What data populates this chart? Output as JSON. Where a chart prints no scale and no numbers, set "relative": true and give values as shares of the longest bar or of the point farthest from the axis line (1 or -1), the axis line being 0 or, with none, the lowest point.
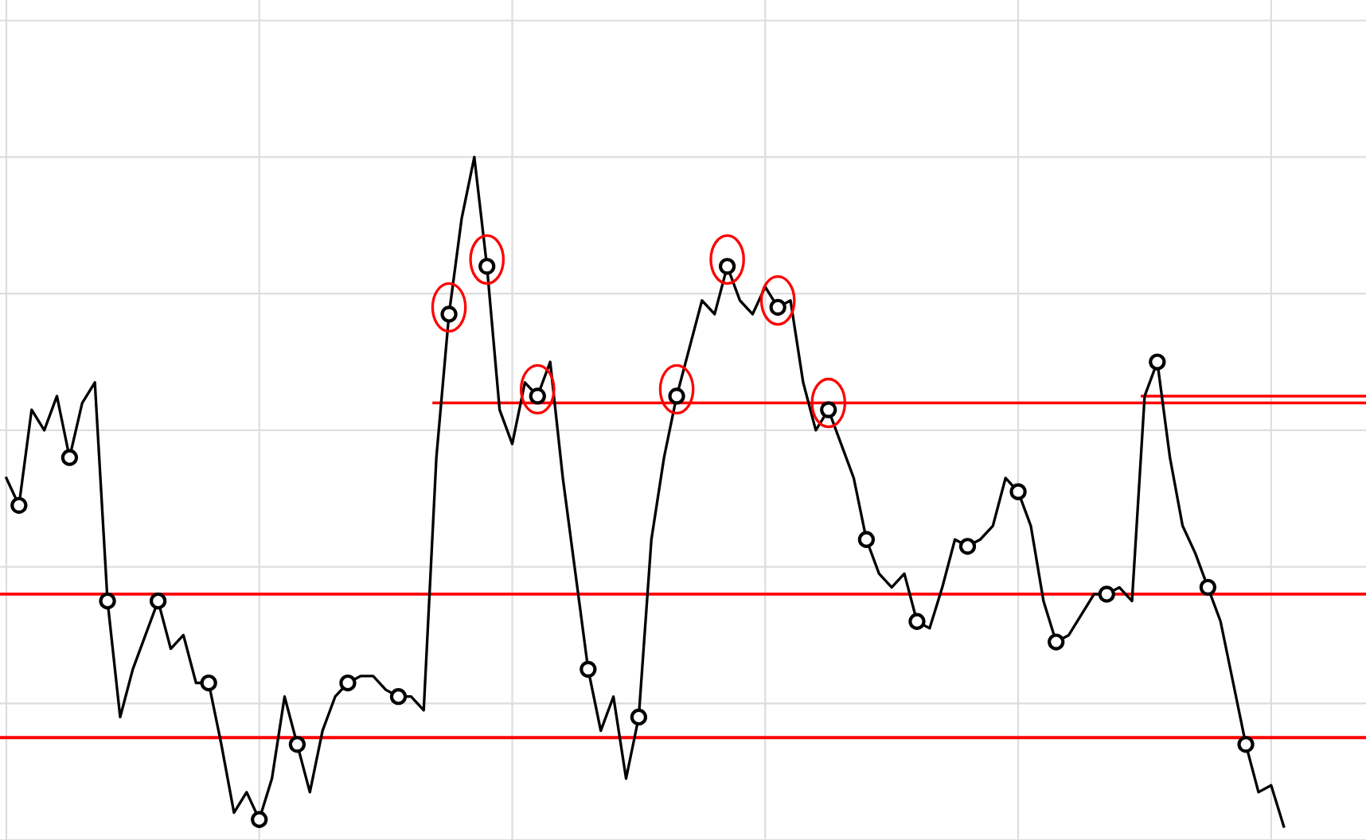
{
  "chart_data": {
    "type": "line",
    "relative": true,
    "grid": true,
    "legend": false,
    "categories": [
      null,
      null,
      null,
      null,
      null,
      null,
      null,
      null,
      null,
      null,
      null,
      null,
      null,
      null,
      null,
      null,
      null,
      null,
      null,
      null,
      null,
      null,
      null,
      null,
      null,
      null,
      null,
      null,
      null,
      null,
      null,
      null,
      null,
      null,
      null,
      null,
      null,
      null,
      null,
      null,
      null,
      null,
      null,
      null,
      null,
      null,
      null,
      null,
      null,
      null,
      null,
      null,
      null,
      null,
      null,
      null,
      null,
      null,
      null,
      null,
      null,
      null,
      null,
      null,
      null,
      null,
      null,
      null,
      null,
      null,
      null,
      null,
      null,
      null,
      null,
      null,
      null,
      null,
      null,
      null,
      null,
      null,
      null,
      null,
      null,
      null,
      null,
      null,
      null,
      null,
      null,
      null,
      null,
      null,
      null,
      null,
      null,
      null,
      null,
      null,
      null,
      null
    ],
    "series": [
      {
        "color": "#000000",
        "values": [
          0.53,
          0.49,
          0.63,
          0.6,
          0.65,
          0.56,
          0.64,
          0.67,
          0.35,
          0.18,
          0.25,
          0.3,
          0.35,
          0.28,
          0.3,
          0.23,
          0.23,
          0.14,
          0.04,
          0.07,
          0.03,
          0.09,
          0.21,
          0.14,
          0.07,
          0.16,
          0.21,
          0.23,
          0.24,
          0.24,
          0.22,
          0.21,
          0.21,
          0.19,
          0.56,
          0.77,
          0.91,
          1.0,
          0.84,
          0.63,
          0.58,
          0.67,
          0.65,
          0.7,
          0.53,
          0.39,
          0.25,
          0.16,
          0.21,
          0.09,
          0.18,
          0.44,
          0.56,
          0.65,
          0.72,
          0.79,
          0.77,
          0.84,
          0.79,
          0.77,
          0.81,
          0.78,
          0.79,
          0.67,
          0.6,
          0.63,
          0.58,
          0.53,
          0.44,
          0.39,
          0.37,
          0.39,
          0.32,
          0.31,
          0.37,
          0.44,
          0.43,
          0.44,
          0.46,
          0.53,
          0.51,
          0.46,
          0.35,
          0.29,
          0.3,
          0.33,
          0.36,
          0.36,
          0.37,
          0.35,
          0.65,
          0.7,
          0.56,
          0.46,
          0.42,
          0.37,
          0.32,
          0.23,
          0.14,
          0.07,
          0.08,
          0.02
        ]
      }
    ],
    "ref_lines": [
      {
        "axis": "y",
        "value": 0.36,
        "color": "#ff0000"
      },
      {
        "axis": "y",
        "value": 0.15,
        "color": "#ff0000"
      },
      {
        "axis": "y",
        "value": 0.64,
        "color": "#ff0000"
      },
      {
        "axis": "y",
        "value": 0.65,
        "color": "#ff0000"
      }
    ]
  }
}
